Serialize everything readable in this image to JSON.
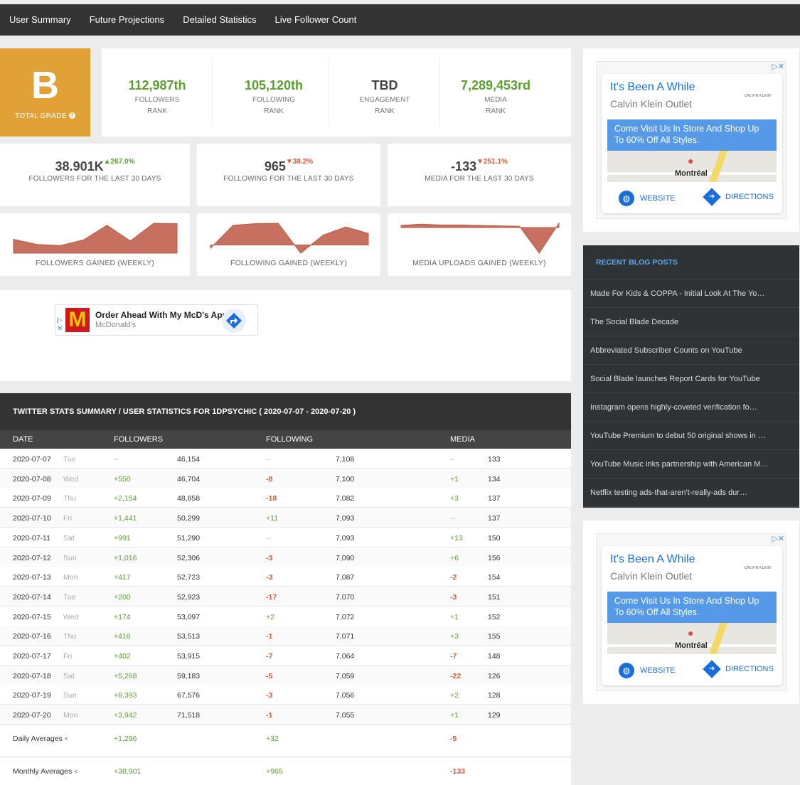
{
  "nav": [
    "User Summary",
    "Future Projections",
    "Detailed Statistics",
    "Live Follower Count"
  ],
  "grade": {
    "letter": "B",
    "label": "TOTAL GRADE",
    "help_icon": "question-circle-icon"
  },
  "ranks": [
    {
      "value": "112,987th",
      "line1": "FOLLOWERS",
      "line2": "RANK"
    },
    {
      "value": "105,120th",
      "line1": "FOLLOWING",
      "line2": "RANK"
    },
    {
      "value": "TBD",
      "line1": "ENGAGEMENT",
      "line2": "RANK"
    },
    {
      "value": "7,289,453rd",
      "line1": "MEDIA",
      "line2": "RANK"
    }
  ],
  "stats": [
    {
      "value": "38.901K",
      "pct": "267.0%",
      "dir": "up",
      "caption": "FOLLOWERS FOR THE LAST 30 DAYS"
    },
    {
      "value": "965",
      "pct": "38.2%",
      "dir": "down",
      "caption": "FOLLOWING FOR THE LAST 30 DAYS"
    },
    {
      "value": "-133",
      "pct": "251.1%",
      "dir": "down",
      "caption": "MEDIA FOR THE LAST 30 DAYS"
    }
  ],
  "sparks": [
    {
      "caption": "FOLLOWERS GAINED (WEEKLY)",
      "values": [
        40,
        25,
        22,
        38,
        80,
        35,
        86,
        85
      ]
    },
    {
      "caption": "FOLLOWING GAINED (WEEKLY)",
      "values": [
        -10,
        60,
        65,
        66,
        -25,
        30,
        55,
        35
      ]
    },
    {
      "caption": "MEDIA UPLOADS GAINED (WEEKLY)",
      "values": [
        5,
        8,
        6,
        6,
        5,
        4,
        3,
        -60,
        10
      ]
    }
  ],
  "sparkColor": "#c8705f",
  "mcd_ad": {
    "title": "Order Ahead With My McD's App",
    "advertiser": "McDonald's"
  },
  "table": {
    "title": "TWITTER STATS SUMMARY / USER STATISTICS FOR 1DPSYCHIC ( 2020-07-07 - 2020-07-20 )",
    "columns": [
      "DATE",
      "FOLLOWERS",
      "FOLLOWING",
      "MEDIA"
    ],
    "rows": [
      [
        "2020-07-07",
        "Tue",
        "--",
        "46,154",
        "--",
        "7,108",
        "--",
        "133"
      ],
      [
        "2020-07-08",
        "Wed",
        "+550",
        "46,704",
        "-8",
        "7,100",
        "+1",
        "134"
      ],
      [
        "2020-07-09",
        "Thu",
        "+2,154",
        "48,858",
        "-18",
        "7,082",
        "+3",
        "137"
      ],
      [
        "2020-07-10",
        "Fri",
        "+1,441",
        "50,299",
        "+11",
        "7,093",
        "--",
        "137"
      ],
      [
        "2020-07-11",
        "Sat",
        "+991",
        "51,290",
        "--",
        "7,093",
        "+13",
        "150"
      ],
      [
        "2020-07-12",
        "Sun",
        "+1,016",
        "52,306",
        "-3",
        "7,090",
        "+6",
        "156"
      ],
      [
        "2020-07-13",
        "Mon",
        "+417",
        "52,723",
        "-3",
        "7,087",
        "-2",
        "154"
      ],
      [
        "2020-07-14",
        "Tue",
        "+200",
        "52,923",
        "-17",
        "7,070",
        "-3",
        "151"
      ],
      [
        "2020-07-15",
        "Wed",
        "+174",
        "53,097",
        "+2",
        "7,072",
        "+1",
        "152"
      ],
      [
        "2020-07-16",
        "Thu",
        "+416",
        "53,513",
        "-1",
        "7,071",
        "+3",
        "155"
      ],
      [
        "2020-07-17",
        "Fri",
        "+402",
        "53,915",
        "-7",
        "7,064",
        "-7",
        "148"
      ],
      [
        "2020-07-18",
        "Sat",
        "+5,268",
        "59,183",
        "-5",
        "7,059",
        "-22",
        "126"
      ],
      [
        "2020-07-19",
        "Sun",
        "+8,393",
        "67,576",
        "-3",
        "7,056",
        "+2",
        "128"
      ],
      [
        "2020-07-20",
        "Mon",
        "+3,942",
        "71,518",
        "-1",
        "7,055",
        "+1",
        "129"
      ]
    ],
    "daily": {
      "label": "Daily Averages",
      "followers": "+1,296",
      "following": "+32",
      "media": "-5"
    },
    "monthly": {
      "label": "Monthly Averages",
      "followers": "+38,901",
      "following": "+965",
      "media": "-133"
    }
  },
  "ck_ad": {
    "title": "It's Been A While",
    "subtitle": "Calvin Klein Outlet",
    "logo": "CALVIN KLEIN",
    "promo": "Come Visit Us In Store And Shop Up To 60% Off All Styles.",
    "city": "Montréal",
    "website": "WEBSITE",
    "directions": "DIRECTIONS"
  },
  "blog": {
    "heading": "RECENT BLOG POSTS",
    "items": [
      "Made For Kids & COPPA - Initial Look At The Yo…",
      "The Social Blade Decade",
      "Abbreviated Subscriber Counts on YouTube",
      "Social Blade launches Report Cards for YouTube",
      "Instagram opens highly-coveted verification fo…",
      "YouTube Premium to debut 50 original shows in …",
      "YouTube Music inks partnership with American M…",
      "Netflix testing ads-that-aren't-really-ads dur…"
    ]
  }
}
